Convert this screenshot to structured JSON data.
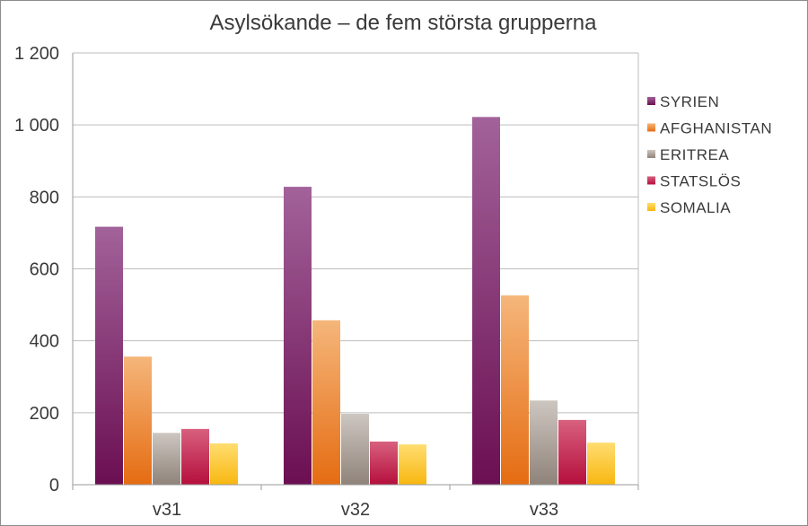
{
  "chart_data": {
    "type": "bar",
    "title": "Asylsökande – de fem största grupperna",
    "xlabel": "",
    "ylabel": "",
    "categories": [
      "v31",
      "v32",
      "v33"
    ],
    "ylim": [
      0,
      1200
    ],
    "yticks": [
      0,
      200,
      400,
      600,
      800,
      1000,
      1200
    ],
    "ytick_labels": [
      "0",
      "200",
      "400",
      "600",
      "800",
      "1 000",
      "1 200"
    ],
    "grid": true,
    "legend_position": "right",
    "series": [
      {
        "name": "SYRIEN",
        "values": [
          717,
          828,
          1022
        ],
        "color_top": "#a2629a",
        "color_bottom": "#6b0f52"
      },
      {
        "name": "AFGHANISTAN",
        "values": [
          356,
          457,
          526
        ],
        "color_top": "#f5b67a",
        "color_bottom": "#e56c12"
      },
      {
        "name": "ERITREA",
        "values": [
          144,
          197,
          234
        ],
        "color_top": "#cdc6c0",
        "color_bottom": "#8f837a"
      },
      {
        "name": "STATSLÖS",
        "values": [
          155,
          120,
          180
        ],
        "color_top": "#d8607e",
        "color_bottom": "#b50f3c"
      },
      {
        "name": "SOMALIA",
        "values": [
          115,
          112,
          117
        ],
        "color_top": "#ffdd70",
        "color_bottom": "#f8b710"
      }
    ]
  }
}
